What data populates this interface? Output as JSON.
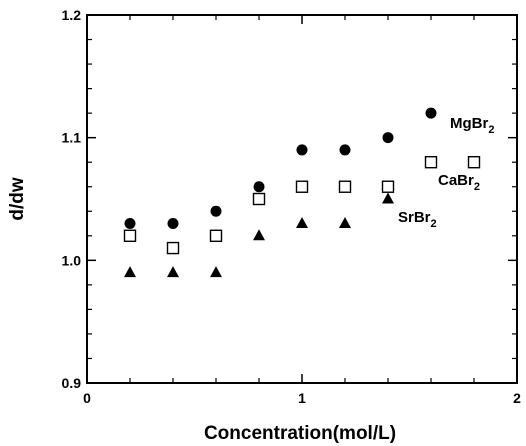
{
  "chart_data": {
    "type": "scatter",
    "xlabel": "Concentration(mol/L)",
    "ylabel": "d/dw",
    "xlim": [
      0,
      2
    ],
    "ylim": [
      0.9,
      1.2
    ],
    "x_ticks": [
      "0",
      "1",
      "2"
    ],
    "y_ticks": [
      "0.9",
      "1.0",
      "1.1",
      "1.2"
    ],
    "grid": false,
    "series": [
      {
        "name": "MgBr",
        "name_subscript": "2",
        "marker": "filled-circle",
        "color": "#000000",
        "x": [
          0.2,
          0.4,
          0.6,
          0.8,
          1.0,
          1.2,
          1.4,
          1.6
        ],
        "values": [
          1.03,
          1.03,
          1.04,
          1.06,
          1.09,
          1.09,
          1.1,
          1.12
        ]
      },
      {
        "name": "CaBr",
        "name_subscript": "2",
        "marker": "open-square",
        "color": "#000000",
        "x": [
          0.2,
          0.4,
          0.6,
          0.8,
          1.0,
          1.2,
          1.4,
          1.6,
          1.8
        ],
        "values": [
          1.02,
          1.01,
          1.02,
          1.05,
          1.06,
          1.06,
          1.06,
          1.08,
          1.08
        ]
      },
      {
        "name": "SrBr",
        "name_subscript": "2",
        "marker": "filled-triangle",
        "color": "#000000",
        "x": [
          0.2,
          0.4,
          0.6,
          0.8,
          1.0,
          1.2,
          1.4
        ],
        "values": [
          0.99,
          0.99,
          0.99,
          1.02,
          1.03,
          1.03,
          1.05
        ]
      }
    ]
  }
}
